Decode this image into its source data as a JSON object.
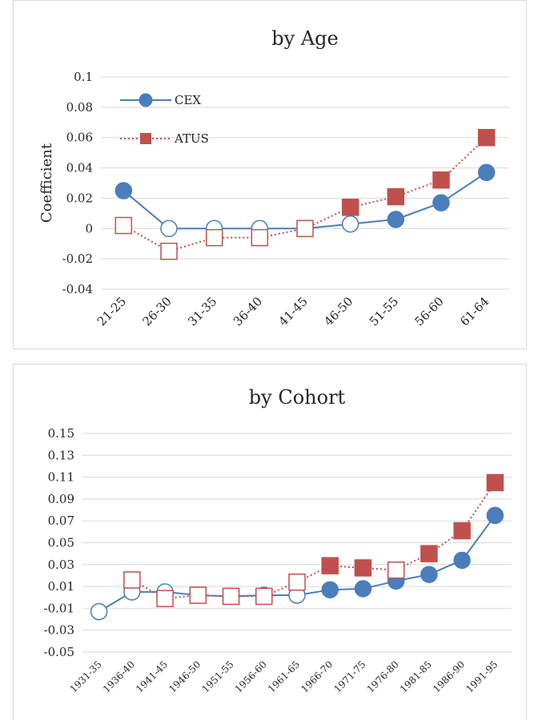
{
  "chart_data": [
    {
      "type": "line",
      "title": "by Age",
      "ylabel": "Coefficient",
      "xlabel": "",
      "ylim": [
        -0.04,
        0.1
      ],
      "yticks": [
        "0.1",
        "0.08",
        "0.06",
        "0.04",
        "0.02",
        "0",
        "-0.02",
        "-0.04"
      ],
      "categories": [
        "21-25",
        "26-30",
        "31-35",
        "36-40",
        "41-45",
        "46-50",
        "51-55",
        "56-60",
        "61-64"
      ],
      "grid": true,
      "legend_position": "top-left",
      "series": [
        {
          "name": "CEX",
          "color": "#4a7ebb",
          "line_style": "solid",
          "marker": "circle",
          "values": [
            0.025,
            0,
            0,
            0,
            0,
            0.003,
            0.006,
            0.017,
            0.037
          ],
          "filled": [
            true,
            false,
            false,
            false,
            false,
            false,
            true,
            true,
            true
          ]
        },
        {
          "name": "ATUS",
          "color": "#c0504d",
          "line_style": "dotted",
          "marker": "square",
          "values": [
            0.002,
            -0.015,
            -0.006,
            -0.006,
            0,
            0.014,
            0.021,
            0.032,
            0.06
          ],
          "filled": [
            false,
            false,
            false,
            false,
            false,
            true,
            true,
            true,
            true
          ]
        }
      ]
    },
    {
      "type": "line",
      "title": "by Cohort",
      "ylabel": "",
      "xlabel": "",
      "ylim": [
        -0.05,
        0.15
      ],
      "yticks": [
        "0.15",
        "0.13",
        "0.11",
        "0.09",
        "0.07",
        "0.05",
        "0.03",
        "0.01",
        "-0.01",
        "-0.03",
        "-0.05"
      ],
      "categories": [
        "1931-35",
        "1936-40",
        "1941-45",
        "1946-50",
        "1951-55",
        "1956-60",
        "1961-65",
        "1966-70",
        "1971-75",
        "1976-80",
        "1981-85",
        "1986-90",
        "1991-95"
      ],
      "grid": true,
      "series": [
        {
          "name": "CEX",
          "color": "#4a7ebb",
          "line_style": "solid",
          "marker": "circle",
          "values": [
            -0.013,
            0.005,
            0.005,
            0.002,
            0.001,
            0.002,
            0.002,
            0.007,
            0.008,
            0.015,
            0.021,
            0.034,
            0.075
          ],
          "filled": [
            false,
            false,
            false,
            false,
            false,
            false,
            false,
            true,
            true,
            true,
            true,
            true,
            true
          ]
        },
        {
          "name": "ATUS",
          "color": "#c0504d",
          "line_style": "dotted",
          "marker": "square",
          "values": [
            null,
            0.016,
            -0.001,
            0.002,
            0.001,
            0.001,
            0.014,
            0.029,
            0.027,
            0.025,
            0.04,
            0.061,
            0.105
          ],
          "filled": [
            false,
            false,
            false,
            false,
            false,
            false,
            false,
            true,
            true,
            false,
            true,
            true,
            true
          ]
        }
      ]
    }
  ]
}
